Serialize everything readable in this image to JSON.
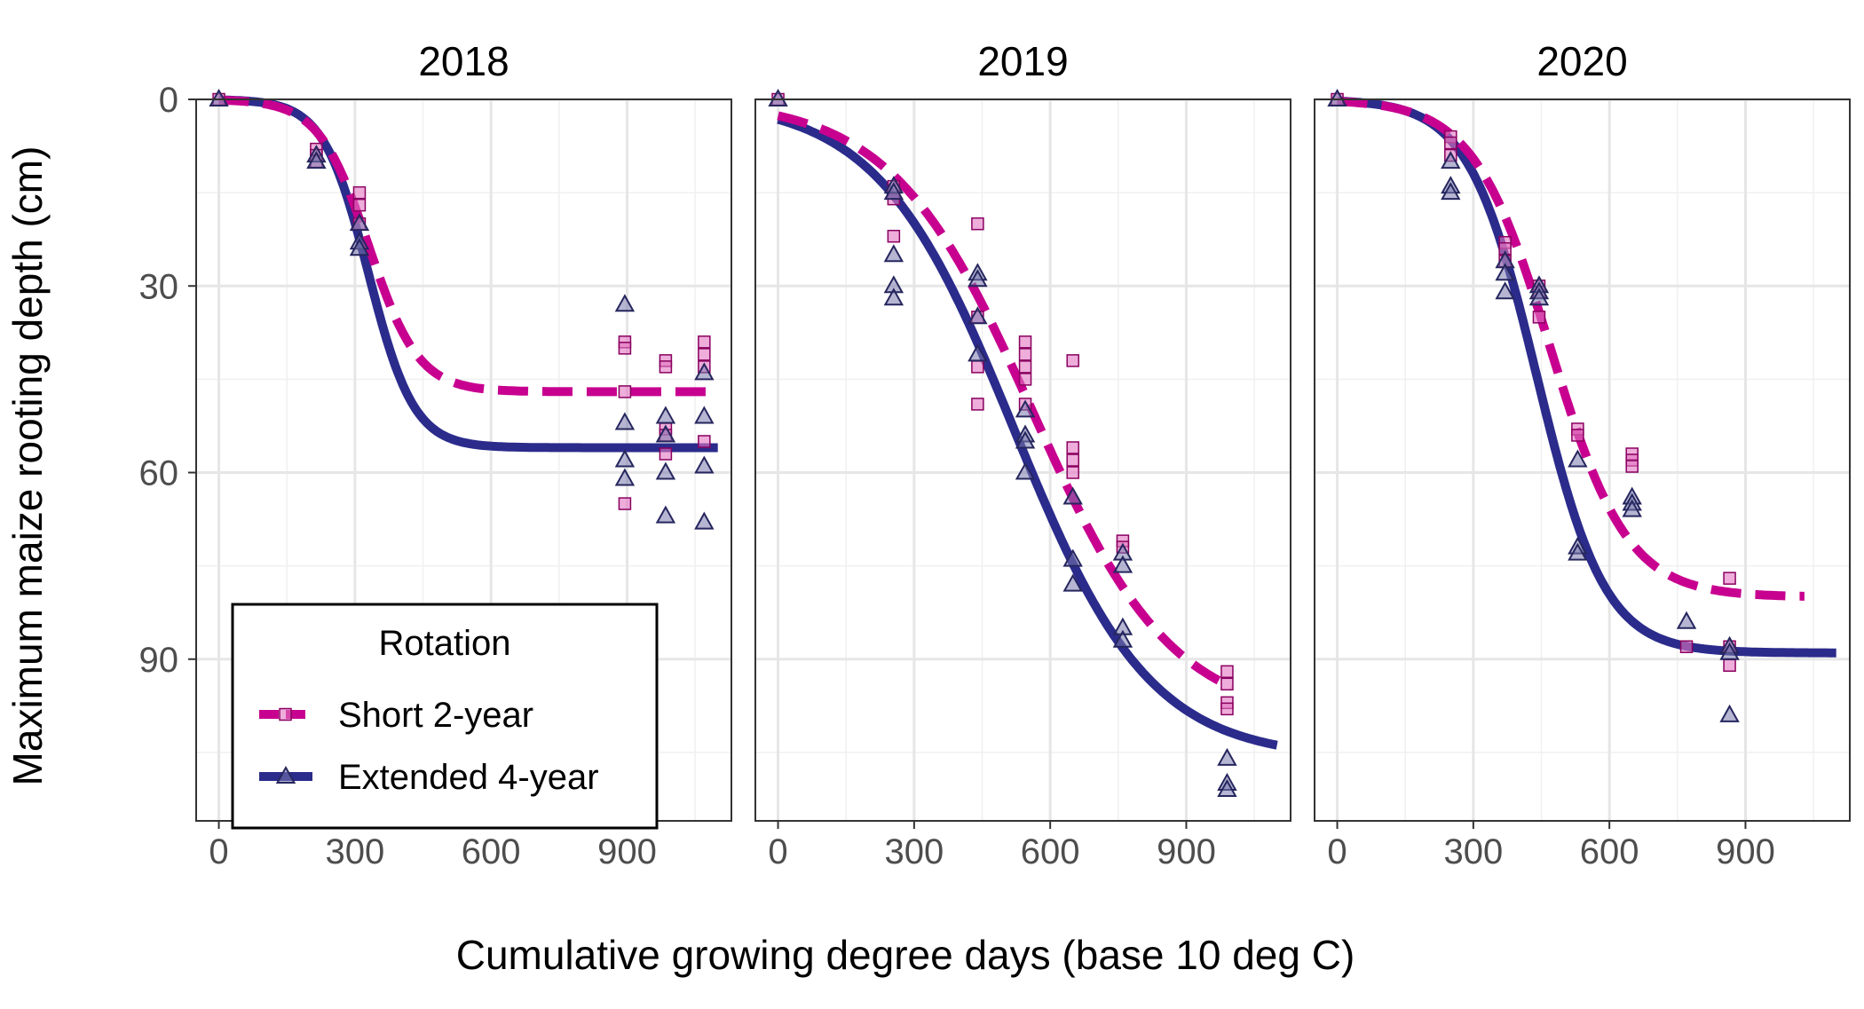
{
  "chart_data": {
    "type": "scatter",
    "facets": [
      "2018",
      "2019",
      "2020"
    ],
    "xlabel": "Cumulative growing degree days (base 10 deg C)",
    "ylabel": "Maximum maize rooting depth (cm)",
    "xlim": [
      -50,
      1130
    ],
    "ylim": [
      0,
      116
    ],
    "y_reversed": true,
    "x_ticks": [
      0,
      300,
      600,
      900
    ],
    "y_ticks": [
      0,
      30,
      60,
      90
    ],
    "x_tick_labels": [
      "0",
      "300",
      "600",
      "900"
    ],
    "y_tick_labels": [
      "0",
      "30",
      "60",
      "90"
    ],
    "grid": true,
    "legend": {
      "title": "Rotation",
      "position": "bottom-left of first panel",
      "items": [
        "Short 2-year",
        "Extended 4-year"
      ]
    },
    "series": [
      {
        "name": "Short 2-year",
        "color": "#C7008F",
        "line": "dashed",
        "marker": "square",
        "fill": "#E377C2"
      },
      {
        "name": "Extended 4-year",
        "color": "#2B2B8C",
        "line": "solid",
        "marker": "triangle",
        "fill": "#7A7AAE"
      }
    ],
    "panels": [
      {
        "year": "2018",
        "fits": [
          {
            "series": "Short 2-year",
            "asym": 47,
            "mid": 330,
            "scale": 55,
            "x_range": [
              0,
              1100
            ]
          },
          {
            "series": "Extended 4-year",
            "asym": 56,
            "mid": 330,
            "scale": 50,
            "x_range": [
              0,
              1100
            ]
          }
        ],
        "points": [
          {
            "series": "Short 2-year",
            "x": 0,
            "y": 0
          },
          {
            "series": "Short 2-year",
            "x": 215,
            "y": 8
          },
          {
            "series": "Short 2-year",
            "x": 215,
            "y": 9
          },
          {
            "series": "Short 2-year",
            "x": 215,
            "y": 10
          },
          {
            "series": "Short 2-year",
            "x": 310,
            "y": 15
          },
          {
            "series": "Short 2-year",
            "x": 310,
            "y": 17
          },
          {
            "series": "Short 2-year",
            "x": 310,
            "y": 20
          },
          {
            "series": "Short 2-year",
            "x": 895,
            "y": 39
          },
          {
            "series": "Short 2-year",
            "x": 895,
            "y": 40
          },
          {
            "series": "Short 2-year",
            "x": 895,
            "y": 47
          },
          {
            "series": "Short 2-year",
            "x": 895,
            "y": 65
          },
          {
            "series": "Short 2-year",
            "x": 985,
            "y": 42
          },
          {
            "series": "Short 2-year",
            "x": 985,
            "y": 43
          },
          {
            "series": "Short 2-year",
            "x": 985,
            "y": 53
          },
          {
            "series": "Short 2-year",
            "x": 985,
            "y": 54
          },
          {
            "series": "Short 2-year",
            "x": 985,
            "y": 57
          },
          {
            "series": "Short 2-year",
            "x": 1070,
            "y": 39
          },
          {
            "series": "Short 2-year",
            "x": 1070,
            "y": 41
          },
          {
            "series": "Short 2-year",
            "x": 1070,
            "y": 43
          },
          {
            "series": "Short 2-year",
            "x": 1070,
            "y": 55
          },
          {
            "series": "Extended 4-year",
            "x": 0,
            "y": 0
          },
          {
            "series": "Extended 4-year",
            "x": 215,
            "y": 9
          },
          {
            "series": "Extended 4-year",
            "x": 215,
            "y": 10
          },
          {
            "series": "Extended 4-year",
            "x": 310,
            "y": 20
          },
          {
            "series": "Extended 4-year",
            "x": 310,
            "y": 23
          },
          {
            "series": "Extended 4-year",
            "x": 310,
            "y": 24
          },
          {
            "series": "Extended 4-year",
            "x": 895,
            "y": 33
          },
          {
            "series": "Extended 4-year",
            "x": 895,
            "y": 52
          },
          {
            "series": "Extended 4-year",
            "x": 895,
            "y": 58
          },
          {
            "series": "Extended 4-year",
            "x": 895,
            "y": 61
          },
          {
            "series": "Extended 4-year",
            "x": 985,
            "y": 51
          },
          {
            "series": "Extended 4-year",
            "x": 985,
            "y": 54
          },
          {
            "series": "Extended 4-year",
            "x": 985,
            "y": 60
          },
          {
            "series": "Extended 4-year",
            "x": 985,
            "y": 67
          },
          {
            "series": "Extended 4-year",
            "x": 1070,
            "y": 44
          },
          {
            "series": "Extended 4-year",
            "x": 1070,
            "y": 51
          },
          {
            "series": "Extended 4-year",
            "x": 1070,
            "y": 59
          },
          {
            "series": "Extended 4-year",
            "x": 1070,
            "y": 68
          }
        ]
      },
      {
        "year": "2019",
        "fits": [
          {
            "series": "Short 2-year",
            "asym": 100,
            "mid": 560,
            "scale": 155,
            "x_range": [
              0,
              1000
            ]
          },
          {
            "series": "Extended 4-year",
            "asym": 106,
            "mid": 520,
            "scale": 150,
            "x_range": [
              0,
              1100
            ]
          }
        ],
        "points": [
          {
            "series": "Short 2-year",
            "x": 0,
            "y": 0
          },
          {
            "series": "Short 2-year",
            "x": 255,
            "y": 14
          },
          {
            "series": "Short 2-year",
            "x": 255,
            "y": 16
          },
          {
            "series": "Short 2-year",
            "x": 255,
            "y": 22
          },
          {
            "series": "Short 2-year",
            "x": 440,
            "y": 20
          },
          {
            "series": "Short 2-year",
            "x": 440,
            "y": 35
          },
          {
            "series": "Short 2-year",
            "x": 440,
            "y": 43
          },
          {
            "series": "Short 2-year",
            "x": 440,
            "y": 49
          },
          {
            "series": "Short 2-year",
            "x": 545,
            "y": 39
          },
          {
            "series": "Short 2-year",
            "x": 545,
            "y": 41
          },
          {
            "series": "Short 2-year",
            "x": 545,
            "y": 43
          },
          {
            "series": "Short 2-year",
            "x": 545,
            "y": 45
          },
          {
            "series": "Short 2-year",
            "x": 545,
            "y": 49
          },
          {
            "series": "Short 2-year",
            "x": 650,
            "y": 42
          },
          {
            "series": "Short 2-year",
            "x": 650,
            "y": 56
          },
          {
            "series": "Short 2-year",
            "x": 650,
            "y": 58
          },
          {
            "series": "Short 2-year",
            "x": 650,
            "y": 60
          },
          {
            "series": "Short 2-year",
            "x": 760,
            "y": 71
          },
          {
            "series": "Short 2-year",
            "x": 760,
            "y": 72
          },
          {
            "series": "Short 2-year",
            "x": 990,
            "y": 92
          },
          {
            "series": "Short 2-year",
            "x": 990,
            "y": 94
          },
          {
            "series": "Short 2-year",
            "x": 990,
            "y": 97
          },
          {
            "series": "Short 2-year",
            "x": 990,
            "y": 98
          },
          {
            "series": "Extended 4-year",
            "x": 0,
            "y": 0
          },
          {
            "series": "Extended 4-year",
            "x": 255,
            "y": 14
          },
          {
            "series": "Extended 4-year",
            "x": 255,
            "y": 15
          },
          {
            "series": "Extended 4-year",
            "x": 255,
            "y": 25
          },
          {
            "series": "Extended 4-year",
            "x": 255,
            "y": 30
          },
          {
            "series": "Extended 4-year",
            "x": 255,
            "y": 32
          },
          {
            "series": "Extended 4-year",
            "x": 440,
            "y": 28
          },
          {
            "series": "Extended 4-year",
            "x": 440,
            "y": 29
          },
          {
            "series": "Extended 4-year",
            "x": 440,
            "y": 35
          },
          {
            "series": "Extended 4-year",
            "x": 440,
            "y": 41
          },
          {
            "series": "Extended 4-year",
            "x": 545,
            "y": 50
          },
          {
            "series": "Extended 4-year",
            "x": 545,
            "y": 54
          },
          {
            "series": "Extended 4-year",
            "x": 545,
            "y": 55
          },
          {
            "series": "Extended 4-year",
            "x": 545,
            "y": 60
          },
          {
            "series": "Extended 4-year",
            "x": 650,
            "y": 64
          },
          {
            "series": "Extended 4-year",
            "x": 650,
            "y": 74
          },
          {
            "series": "Extended 4-year",
            "x": 650,
            "y": 78
          },
          {
            "series": "Extended 4-year",
            "x": 760,
            "y": 73
          },
          {
            "series": "Extended 4-year",
            "x": 760,
            "y": 75
          },
          {
            "series": "Extended 4-year",
            "x": 760,
            "y": 85
          },
          {
            "series": "Extended 4-year",
            "x": 760,
            "y": 87
          },
          {
            "series": "Extended 4-year",
            "x": 990,
            "y": 106
          },
          {
            "series": "Extended 4-year",
            "x": 990,
            "y": 110
          },
          {
            "series": "Extended 4-year",
            "x": 990,
            "y": 111
          }
        ]
      },
      {
        "year": "2020",
        "fits": [
          {
            "series": "Short 2-year",
            "asym": 80,
            "mid": 470,
            "scale": 85,
            "x_range": [
              0,
              1030
            ]
          },
          {
            "series": "Extended 4-year",
            "asym": 89,
            "mid": 440,
            "scale": 75,
            "x_range": [
              0,
              1100
            ]
          }
        ],
        "points": [
          {
            "series": "Short 2-year",
            "x": 0,
            "y": 0
          },
          {
            "series": "Short 2-year",
            "x": 250,
            "y": 6
          },
          {
            "series": "Short 2-year",
            "x": 250,
            "y": 7
          },
          {
            "series": "Short 2-year",
            "x": 250,
            "y": 9
          },
          {
            "series": "Short 2-year",
            "x": 370,
            "y": 23
          },
          {
            "series": "Short 2-year",
            "x": 370,
            "y": 24
          },
          {
            "series": "Short 2-year",
            "x": 370,
            "y": 26
          },
          {
            "series": "Short 2-year",
            "x": 445,
            "y": 30
          },
          {
            "series": "Short 2-year",
            "x": 445,
            "y": 31
          },
          {
            "series": "Short 2-year",
            "x": 445,
            "y": 35
          },
          {
            "series": "Short 2-year",
            "x": 530,
            "y": 53
          },
          {
            "series": "Short 2-year",
            "x": 530,
            "y": 54
          },
          {
            "series": "Short 2-year",
            "x": 650,
            "y": 57
          },
          {
            "series": "Short 2-year",
            "x": 650,
            "y": 58
          },
          {
            "series": "Short 2-year",
            "x": 650,
            "y": 59
          },
          {
            "series": "Short 2-year",
            "x": 770,
            "y": 88
          },
          {
            "series": "Short 2-year",
            "x": 865,
            "y": 77
          },
          {
            "series": "Short 2-year",
            "x": 865,
            "y": 88
          },
          {
            "series": "Short 2-year",
            "x": 865,
            "y": 91
          },
          {
            "series": "Extended 4-year",
            "x": 0,
            "y": 0
          },
          {
            "series": "Extended 4-year",
            "x": 250,
            "y": 10
          },
          {
            "series": "Extended 4-year",
            "x": 250,
            "y": 14
          },
          {
            "series": "Extended 4-year",
            "x": 250,
            "y": 15
          },
          {
            "series": "Extended 4-year",
            "x": 370,
            "y": 26
          },
          {
            "series": "Extended 4-year",
            "x": 370,
            "y": 28
          },
          {
            "series": "Extended 4-year",
            "x": 370,
            "y": 31
          },
          {
            "series": "Extended 4-year",
            "x": 445,
            "y": 30
          },
          {
            "series": "Extended 4-year",
            "x": 445,
            "y": 31
          },
          {
            "series": "Extended 4-year",
            "x": 445,
            "y": 32
          },
          {
            "series": "Extended 4-year",
            "x": 530,
            "y": 58
          },
          {
            "series": "Extended 4-year",
            "x": 530,
            "y": 72
          },
          {
            "series": "Extended 4-year",
            "x": 530,
            "y": 73
          },
          {
            "series": "Extended 4-year",
            "x": 650,
            "y": 64
          },
          {
            "series": "Extended 4-year",
            "x": 650,
            "y": 65
          },
          {
            "series": "Extended 4-year",
            "x": 650,
            "y": 66
          },
          {
            "series": "Extended 4-year",
            "x": 770,
            "y": 84
          },
          {
            "series": "Extended 4-year",
            "x": 865,
            "y": 88
          },
          {
            "series": "Extended 4-year",
            "x": 865,
            "y": 89
          },
          {
            "series": "Extended 4-year",
            "x": 865,
            "y": 99
          }
        ]
      }
    ]
  }
}
